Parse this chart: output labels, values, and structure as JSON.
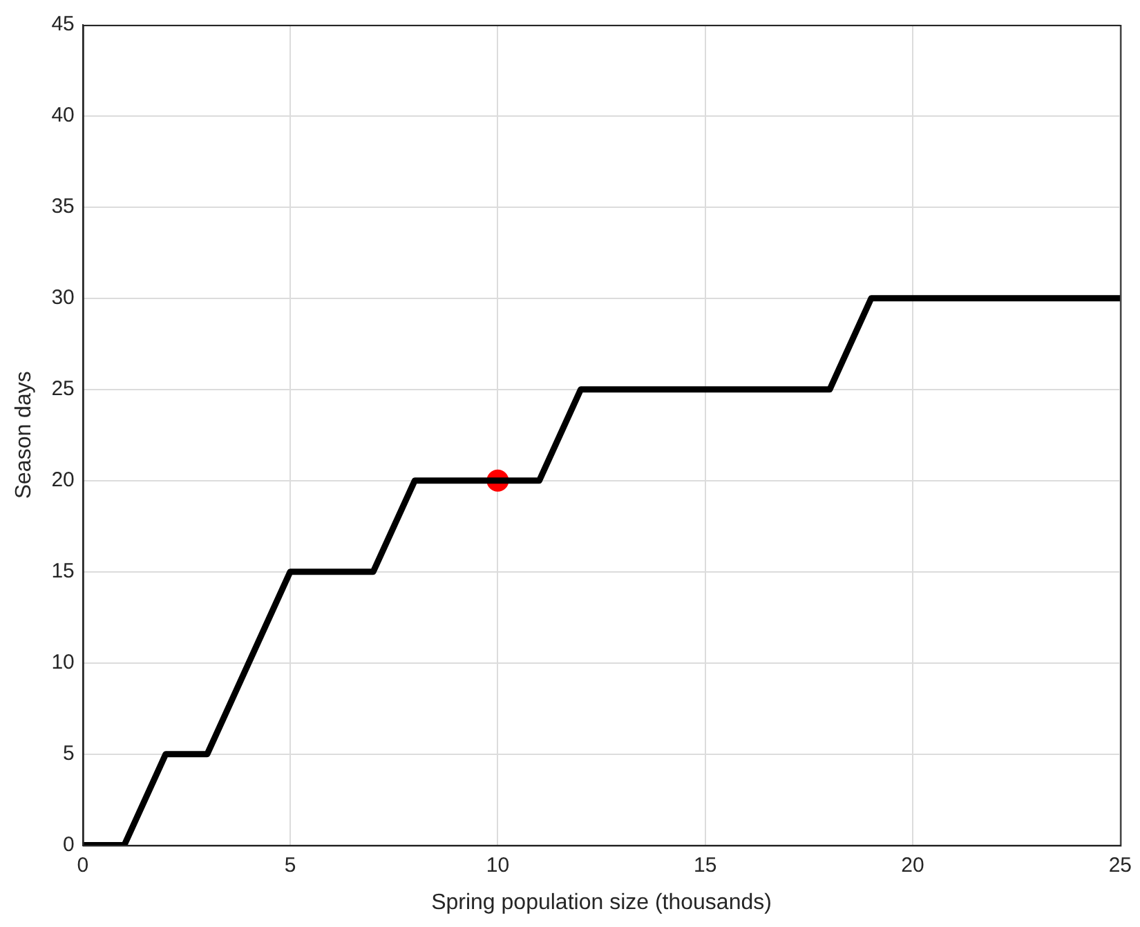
{
  "chart_data": {
    "type": "line",
    "xlabel": "Spring population size (thousands)",
    "ylabel": "Season days",
    "series": [
      {
        "color": "#000000",
        "marker": "none",
        "x": [
          0,
          1,
          2,
          3,
          5,
          7,
          8,
          11,
          12,
          18,
          19,
          25
        ],
        "values": [
          0,
          0,
          5,
          5,
          15,
          15,
          20,
          20,
          25,
          25,
          30,
          30
        ]
      },
      {
        "type": "scatter",
        "color": "#ff0000",
        "marker": "circle",
        "x": [
          10
        ],
        "values": [
          20
        ]
      }
    ],
    "xlim": [
      0,
      25
    ],
    "xticks": [
      0,
      5,
      10,
      15,
      20,
      25
    ],
    "ylim": [
      0,
      45
    ],
    "yticks": [
      0,
      5,
      10,
      15,
      20,
      25,
      30,
      35,
      40,
      45
    ],
    "grid": true,
    "legend": false
  }
}
